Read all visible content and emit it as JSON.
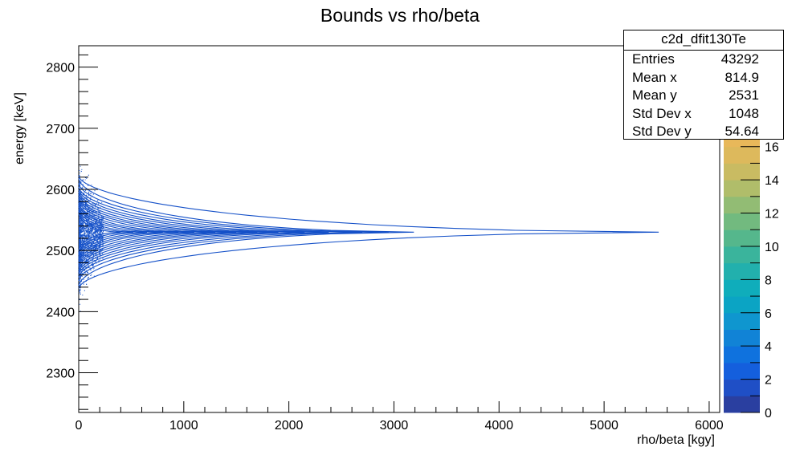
{
  "chart_data": {
    "type": "heatmap",
    "title": "Bounds vs rho/beta",
    "xlabel": "rho/beta [kgy]",
    "ylabel": "energy [keV]",
    "xlim": [
      0,
      6100
    ],
    "ylim": [
      2235,
      2835
    ],
    "x_ticks": [
      0,
      1000,
      2000,
      3000,
      4000,
      5000,
      6000
    ],
    "y_ticks": [
      2300,
      2400,
      2500,
      2600,
      2700,
      2800
    ],
    "center_energy": 2530,
    "curves": [
      {
        "tip_x": 5520,
        "width": 92
      },
      {
        "tip_x": 3190,
        "width": 88
      },
      {
        "tip_x": 2950,
        "width": 80
      },
      {
        "tip_x": 2700,
        "width": 74
      },
      {
        "tip_x": 2380,
        "width": 70
      },
      {
        "tip_x": 2150,
        "width": 66
      },
      {
        "tip_x": 1900,
        "width": 62
      },
      {
        "tip_x": 1700,
        "width": 58
      },
      {
        "tip_x": 1500,
        "width": 55
      },
      {
        "tip_x": 1300,
        "width": 52
      },
      {
        "tip_x": 1100,
        "width": 48
      },
      {
        "tip_x": 950,
        "width": 45
      },
      {
        "tip_x": 800,
        "width": 42
      },
      {
        "tip_x": 650,
        "width": 38
      },
      {
        "tip_x": 520,
        "width": 35
      },
      {
        "tip_x": 400,
        "width": 31
      }
    ],
    "colorbar": {
      "min": 0,
      "max": 17,
      "ticks": [
        0,
        2,
        4,
        6,
        8,
        10,
        12,
        14,
        16
      ],
      "visible_max_label": 16,
      "palette": [
        "#2a3fa0",
        "#1f4fc6",
        "#145fdd",
        "#0f72de",
        "#1183d6",
        "#0f96cf",
        "#0ba4c4",
        "#0fadbb",
        "#22b0ad",
        "#3ab49c",
        "#55b78c",
        "#72ba7f",
        "#92bc74",
        "#b0bd6a",
        "#c9bb62",
        "#ddb95c",
        "#e8b85a"
      ],
      "point_color": "#1450c8"
    },
    "stats": {
      "name": "c2d_dfit130Te",
      "rows": [
        {
          "label": "Entries",
          "value": "43292"
        },
        {
          "label": "Mean x",
          "value": "814.9"
        },
        {
          "label": "Mean y",
          "value": "2531"
        },
        {
          "label": "Std Dev x",
          "value": "1048"
        },
        {
          "label": "Std Dev y",
          "value": "54.64"
        }
      ]
    }
  }
}
